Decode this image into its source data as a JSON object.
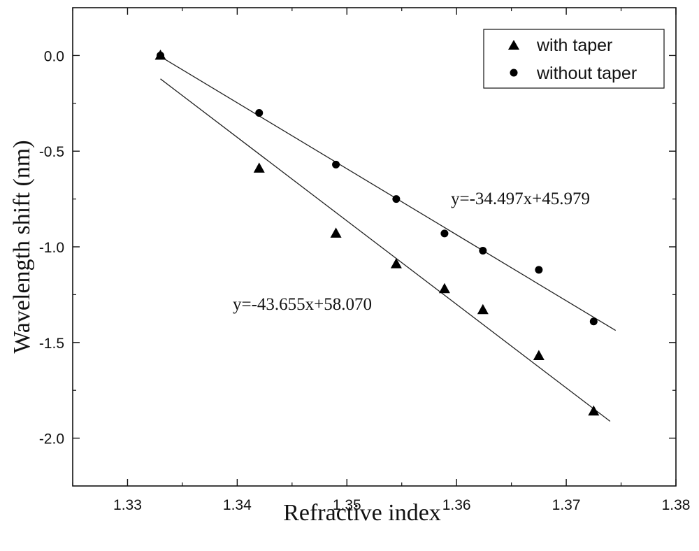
{
  "chart_data": {
    "type": "scatter",
    "title": "",
    "xlabel": "Refractive index",
    "ylabel": "Wavelength shift (nm)",
    "xlim": [
      1.325,
      1.38
    ],
    "ylim": [
      -2.25,
      0.25
    ],
    "xticks": [
      1.33,
      1.34,
      1.35,
      1.36,
      1.37,
      1.38
    ],
    "xtick_labels": [
      "1.33",
      "1.34",
      "1.35",
      "1.36",
      "1.37",
      "1.38"
    ],
    "yticks": [
      0.0,
      -0.5,
      -1.0,
      -1.5,
      -2.0
    ],
    "ytick_labels": [
      "0.0",
      "-0.5",
      "-1.0",
      "-1.5",
      "-2.0"
    ],
    "grid": false,
    "legend_position": "top-right",
    "series": [
      {
        "name": "with taper",
        "marker": "triangle",
        "x": [
          1.333,
          1.342,
          1.349,
          1.3545,
          1.3589,
          1.3624,
          1.3675,
          1.3725
        ],
        "y": [
          0.0,
          -0.59,
          -0.93,
          -1.09,
          -1.22,
          -1.33,
          -1.57,
          -1.86
        ]
      },
      {
        "name": "without taper",
        "marker": "circle",
        "x": [
          1.333,
          1.342,
          1.349,
          1.3545,
          1.3589,
          1.3624,
          1.3675,
          1.3725
        ],
        "y": [
          0.0,
          -0.3,
          -0.57,
          -0.75,
          -0.93,
          -1.02,
          -1.12,
          -1.39
        ]
      }
    ],
    "fit_lines": [
      {
        "series": "with taper",
        "slope": -43.655,
        "intercept": 58.07,
        "x_range": [
          1.333,
          1.374
        ],
        "label": "y=-43.655x+58.070"
      },
      {
        "series": "without taper",
        "slope": -34.497,
        "intercept": 45.979,
        "x_range": [
          1.333,
          1.3745
        ],
        "label": "y=-34.497x+45.979"
      }
    ]
  }
}
